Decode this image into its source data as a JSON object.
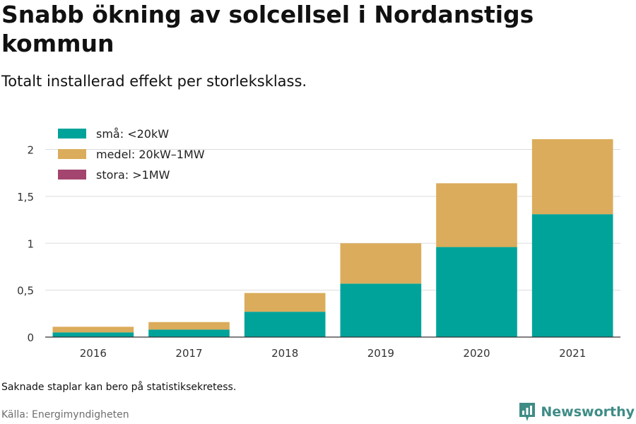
{
  "title": "Snabb ökning av solcellsel i Nordanstigs kommun",
  "subtitle": "Totalt installerad effekt per storleksklass.",
  "note": "Saknade staplar kan bero på statistiksekretess.",
  "source": "Källa: Energimyndigheten",
  "brand": {
    "name": "Newsworthy",
    "logo_icon": "newsworthy-logo-icon",
    "color": "#3f8c86"
  },
  "chart_data": {
    "type": "bar",
    "stacked": true,
    "categories": [
      "2016",
      "2017",
      "2018",
      "2019",
      "2020",
      "2021"
    ],
    "series": [
      {
        "name": "små: <20kW",
        "color": "#00a39a",
        "values": [
          0.05,
          0.08,
          0.27,
          0.57,
          0.96,
          1.31
        ]
      },
      {
        "name": "medel: 20kW–1MW",
        "color": "#dbac5b",
        "values": [
          0.06,
          0.08,
          0.2,
          0.43,
          0.68,
          0.8
        ]
      },
      {
        "name": "stora: >1MW",
        "color": "#a3456e",
        "values": [
          0,
          0,
          0,
          0,
          0,
          0
        ]
      }
    ],
    "ylim": [
      0,
      2.2
    ],
    "yticks": [
      0,
      0.5,
      1,
      1.5,
      2
    ],
    "ytick_labels": [
      "0",
      "0,5",
      "1",
      "1,5",
      "2"
    ],
    "grid": true,
    "legend_position": "top-left"
  }
}
